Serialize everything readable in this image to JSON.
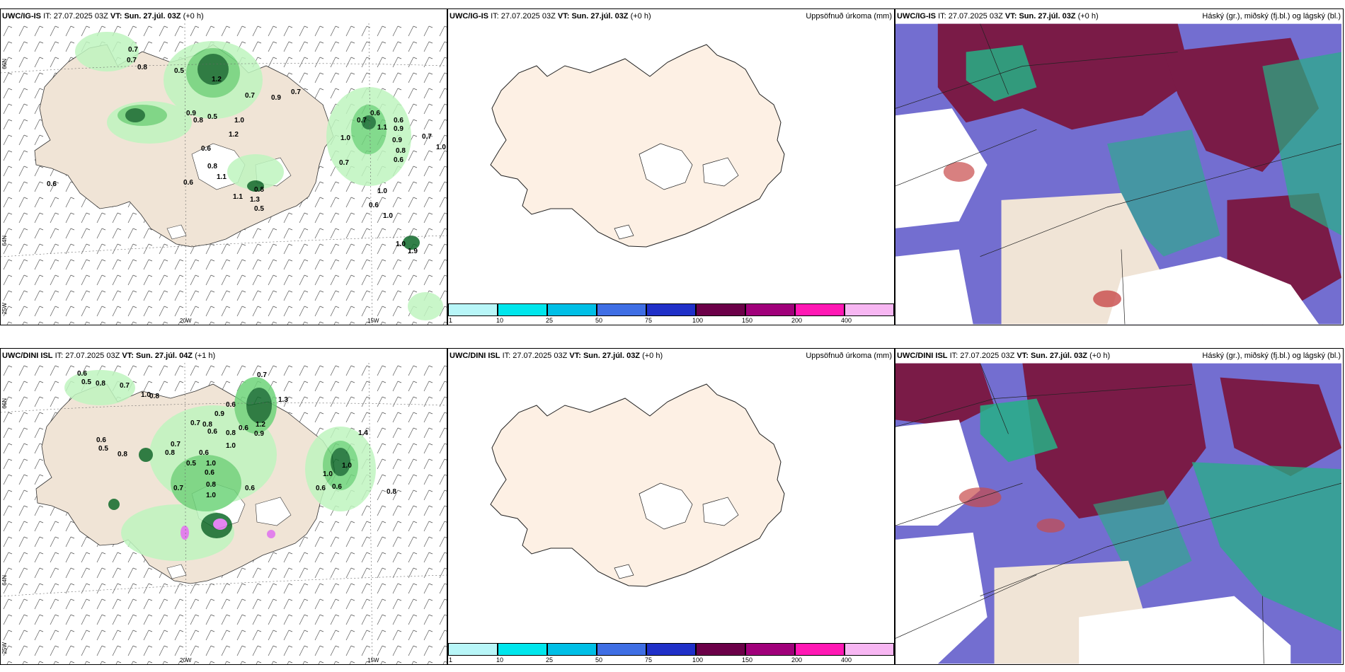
{
  "panels": {
    "p1": {
      "model": "UWC/IG-IS",
      "it_label": "IT:",
      "it_value": "27.07.2025 03Z",
      "vt_label": "VT:",
      "vt_value": "Sun. 27.júl. 03Z",
      "lead": "(+0 h)",
      "axis": {
        "lon1": "20W",
        "lon2": "15W",
        "lat1": "66N",
        "lat2": "64N",
        "lat3": "25W"
      },
      "precip_labels": [
        "0.7",
        "0.7",
        "0.8",
        "0.5",
        "1.2",
        "0.7",
        "0.9",
        "0.7",
        "0.9",
        "0.5",
        "0.8",
        "1.0",
        "0.7",
        "0.6",
        "1.2",
        "0.6",
        "0.8",
        "1.1",
        "0.7",
        "0.6",
        "1.0",
        "0.8",
        "1.1",
        "1.3",
        "0.5",
        "1.1",
        "0.6",
        "0.9",
        "0.9",
        "0.8",
        "0.6",
        "1.0",
        "0.7",
        "0.6",
        "1.0",
        "0.6",
        "1.0",
        "1.0",
        "1.9"
      ]
    },
    "p2": {
      "model": "UWC/IG-IS",
      "it_label": "IT:",
      "it_value": "27.07.2025 03Z",
      "vt_label": "VT:",
      "vt_value": "Sun. 27.júl. 03Z",
      "lead": "(+0 h)",
      "right_title": "Uppsöfnuð úrkoma (mm)"
    },
    "p3": {
      "model": "UWC/IG-IS",
      "it_label": "IT:",
      "it_value": "27.07.2025 03Z",
      "vt_label": "VT:",
      "vt_value": "Sun. 27.júl. 03Z",
      "lead": "(+0 h)",
      "right_title": "Háský (gr.), miðský (fj.bl.) og lágský (bl.)"
    },
    "p4": {
      "model": "UWC/DINI ISL",
      "it_label": "IT:",
      "it_value": "27.07.2025 03Z",
      "vt_label": "VT:",
      "vt_value": "Sun. 27.júl. 04Z",
      "lead": "(+1 h)",
      "axis": {
        "lon1": "20W",
        "lon2": "15W",
        "lat1": "66N",
        "lat2": "64N",
        "lat3": "25W"
      },
      "precip_labels": [
        "0.6",
        "0.5",
        "0.8",
        "0.7",
        "1.0",
        "0.8",
        "0.7",
        "1.3",
        "0.6",
        "0.9",
        "0.8",
        "0.7",
        "0.6",
        "0.8",
        "0.6",
        "1.2",
        "0.9",
        "0.6",
        "0.5",
        "0.8",
        "1.0",
        "0.6",
        "0.7",
        "0.5",
        "1.0",
        "0.8",
        "0.6",
        "0.7",
        "0.8",
        "0.6",
        "1.0",
        "0.6",
        "0.6",
        "0.8",
        "1.4",
        "1.0",
        "1.0"
      ]
    },
    "p5": {
      "model": "UWC/DINI ISL",
      "it_label": "IT:",
      "it_value": "27.07.2025 03Z",
      "vt_label": "VT:",
      "vt_value": "Sun. 27.júl. 03Z",
      "lead": "(+0 h)",
      "right_title": "Uppsöfnuð úrkoma (mm)"
    },
    "p6": {
      "model": "UWC/DINI ISL",
      "it_label": "IT:",
      "it_value": "27.07.2025 03Z",
      "vt_label": "VT:",
      "vt_value": "Sun. 27.júl. 03Z",
      "lead": "(+0 h)",
      "right_title": "Háský (gr.), miðský (fj.bl.) og lágský (bl.)"
    }
  },
  "colorbar": {
    "ticks": [
      "1",
      "10",
      "25",
      "50",
      "75",
      "100",
      "150",
      "200",
      "400"
    ],
    "colors": [
      "#b8f6f8",
      "#00e6ec",
      "#00bfe6",
      "#3f6ee4",
      "#2030c8",
      "#6b0048",
      "#a0007a",
      "#ff18b4",
      "#f7b6f2"
    ]
  },
  "colors": {
    "land": "#f0e4d6",
    "land_plain": "#fdf0e4",
    "precip_light": "#bff5bf",
    "precip_mid": "#6ed47a",
    "precip_dark": "#0f6b2a",
    "precip_magenta": "#e070f0",
    "cloud_high": "#7a1b47",
    "cloud_mid": "#5a55c8",
    "cloud_low": "#26b086"
  }
}
